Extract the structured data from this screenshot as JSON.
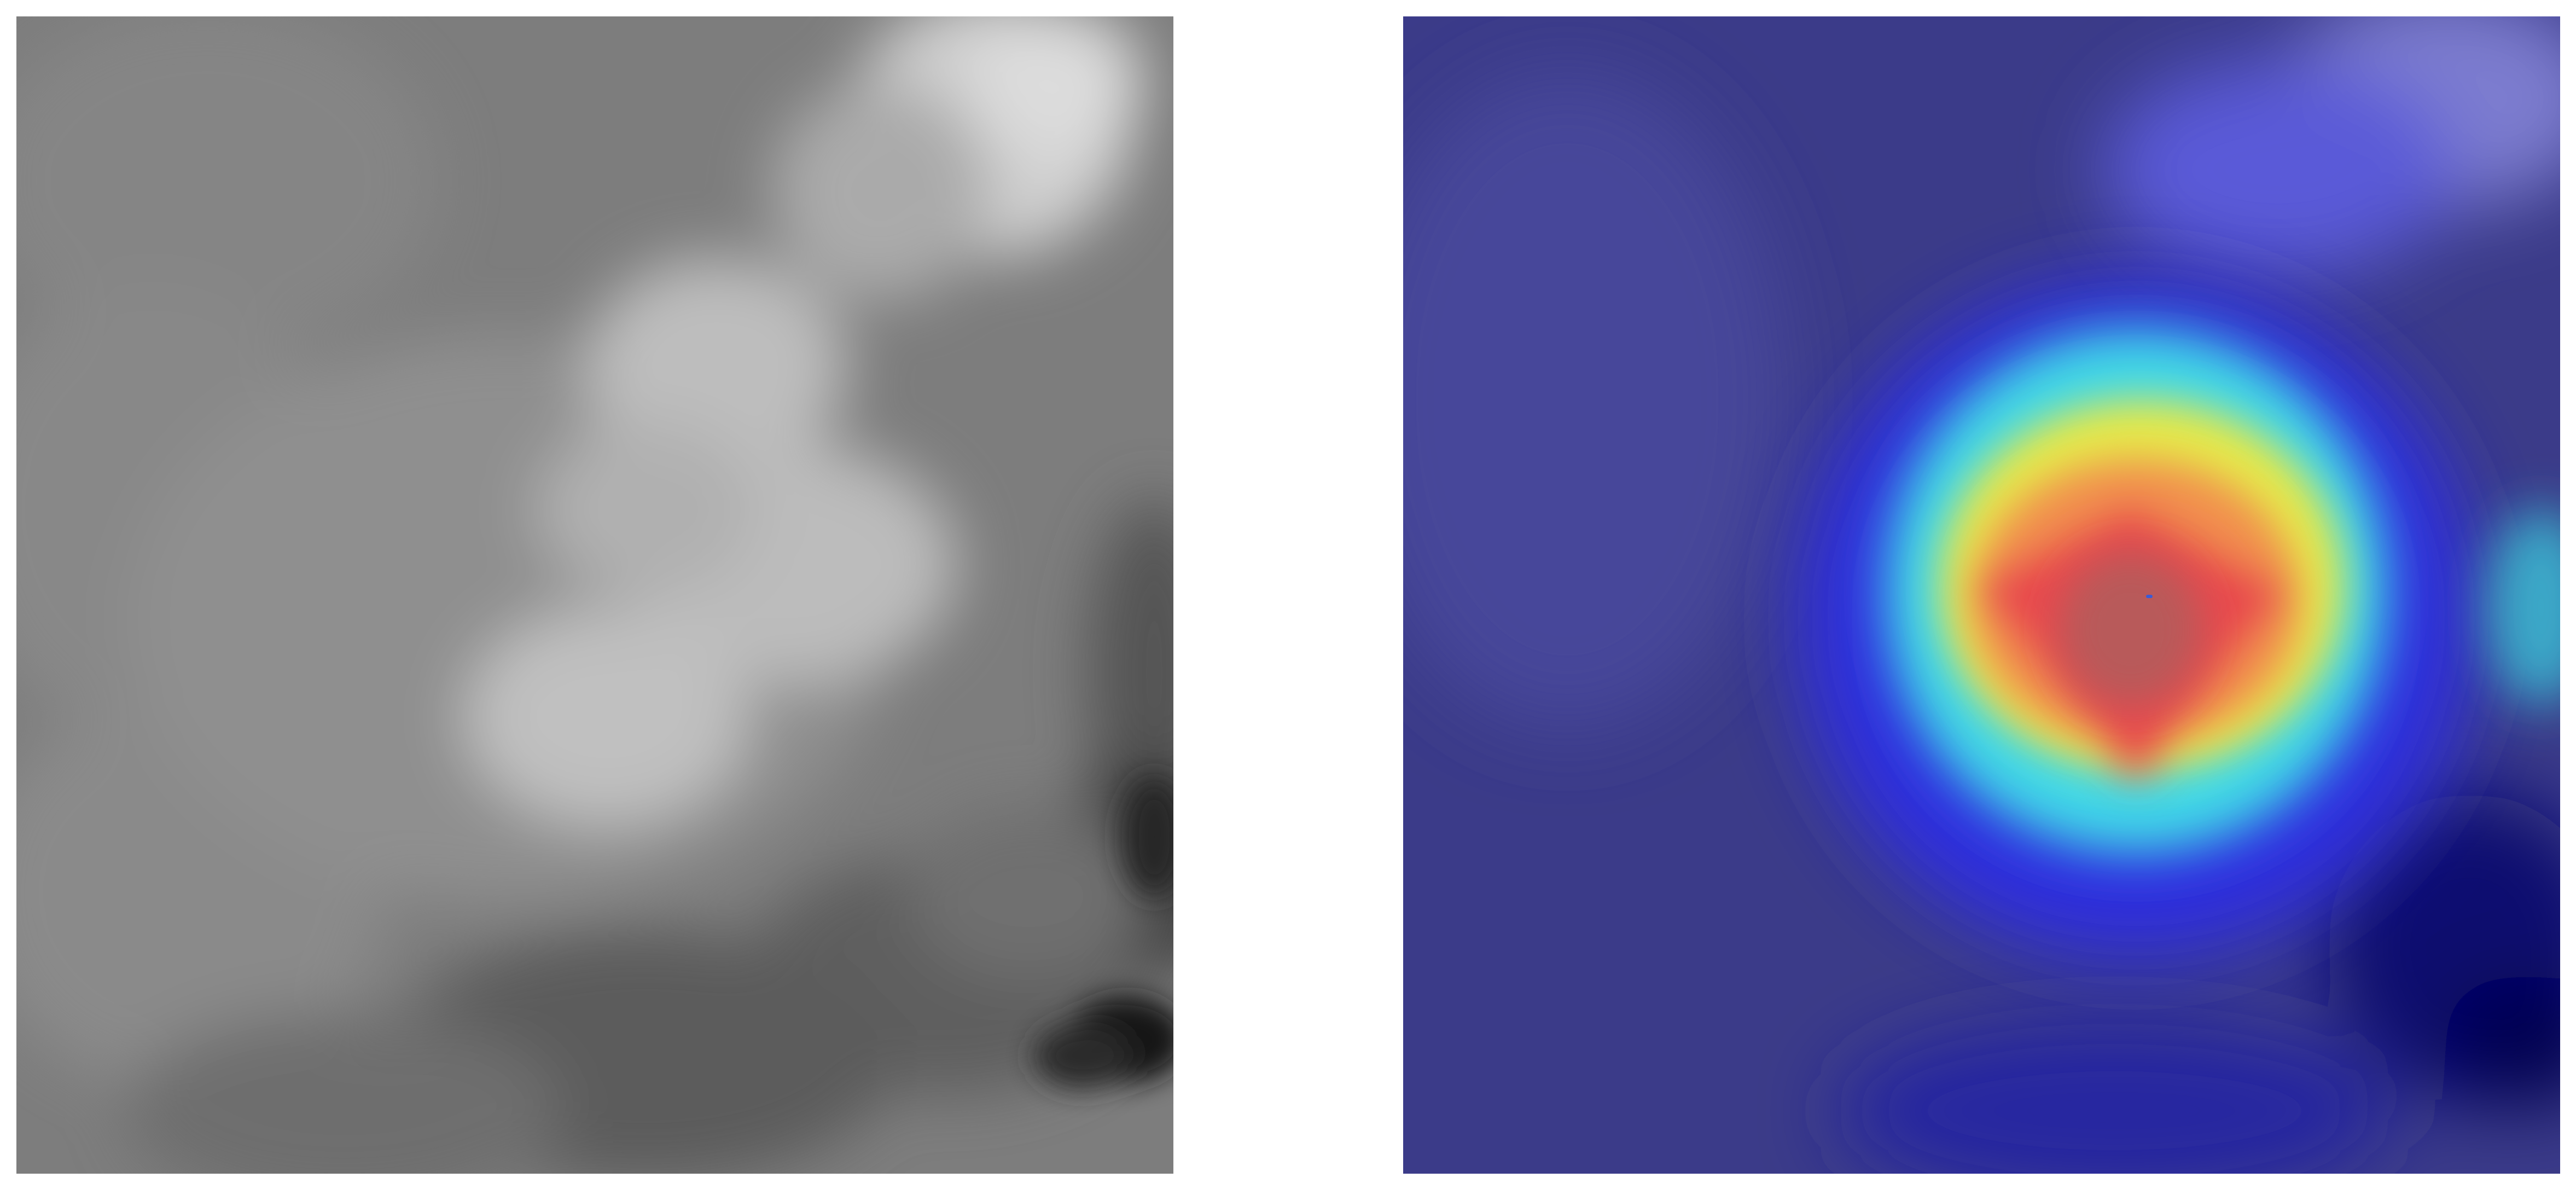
{
  "panels": [
    {
      "id": "original",
      "colormap": "grayscale"
    },
    {
      "id": "heatmap-overlay",
      "colormap": "jet",
      "peak_marker_color": "#3a5bd6"
    }
  ]
}
